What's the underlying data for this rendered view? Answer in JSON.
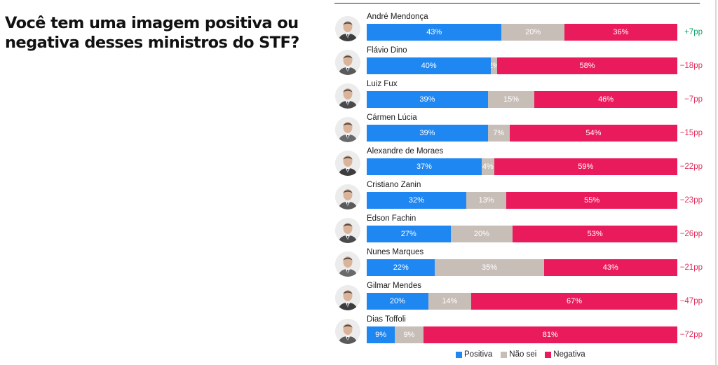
{
  "title": "Você tem uma imagem positiva ou negativa desses ministros do STF?",
  "colors": {
    "positiva": "#1f87f2",
    "nao_sei": "#c8beb8",
    "negativa": "#ea1b5c",
    "diff_positive": "#14a46a",
    "diff_negative": "#e0315d"
  },
  "chart_data": {
    "type": "bar",
    "orientation": "horizontal",
    "stacked": true,
    "title": "Você tem uma imagem positiva ou negativa desses ministros do STF?",
    "categories": [
      "André Mendonça",
      "Flávio Dino",
      "Luiz Fux",
      "Cármen Lúcia",
      "Alexandre de Moraes",
      "Cristiano Zanin",
      "Edson Fachin",
      "Nunes Marques",
      "Gilmar Mendes",
      "Dias Toffoli"
    ],
    "series": [
      {
        "name": "Positiva",
        "values": [
          43,
          40,
          39,
          39,
          37,
          32,
          27,
          22,
          20,
          9
        ]
      },
      {
        "name": "Não sei",
        "values": [
          20,
          2,
          15,
          7,
          4,
          13,
          20,
          35,
          14,
          9
        ]
      },
      {
        "name": "Negativa",
        "values": [
          36,
          58,
          46,
          54,
          59,
          55,
          53,
          43,
          67,
          81
        ]
      }
    ],
    "net_labels": [
      "+7pp",
      "−18pp",
      "−7pp",
      "−15pp",
      "−22pp",
      "−23pp",
      "−26pp",
      "−21pp",
      "−47pp",
      "−72pp"
    ],
    "legend": [
      "Positiva",
      "Não sei",
      "Negativa"
    ],
    "legend_position": "bottom",
    "xlim": [
      0,
      100
    ]
  }
}
